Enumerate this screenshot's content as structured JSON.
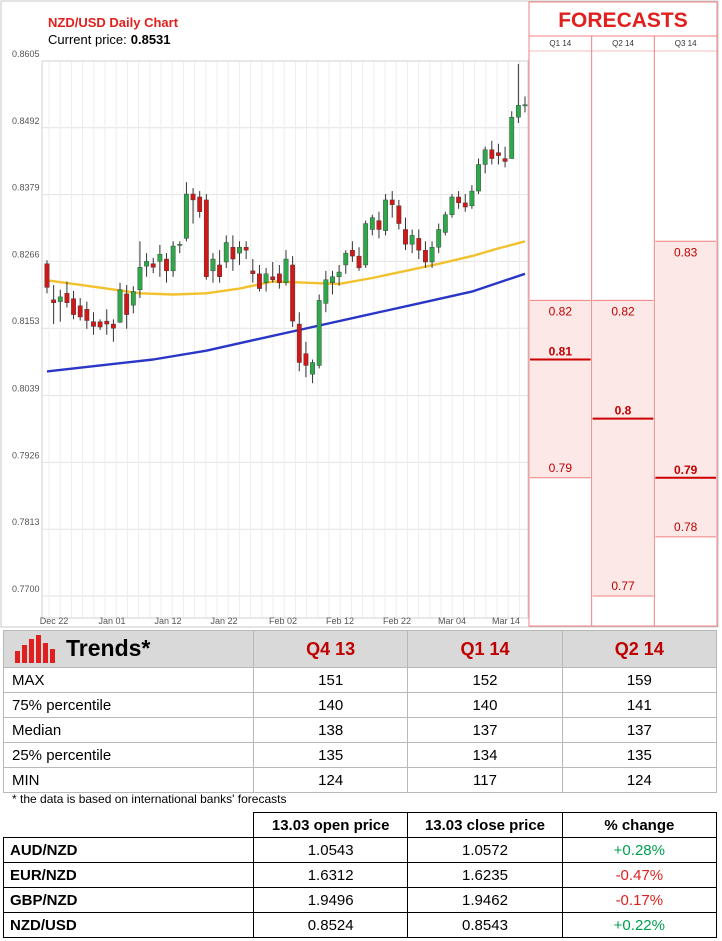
{
  "chart_data": {
    "type": "candlestick",
    "title": "NZD/USD Daily Chart",
    "current_price_label": "Current price:",
    "current_price": "0.8531",
    "y_ticks": [
      "0.8605",
      "0.8492",
      "0.8379",
      "0.8266",
      "0.8153",
      "0.8039",
      "0.7926",
      "0.7813",
      "0.7700"
    ],
    "ylim": [
      0.77,
      0.8605
    ],
    "x_ticks": [
      "Dec 22",
      "Jan 01",
      "Jan 12",
      "Jan 22",
      "Feb 02",
      "Feb 12",
      "Feb 22",
      "Mar 04",
      "Mar 14"
    ],
    "grid": true,
    "candles": [
      [
        0.8262,
        0.8268,
        0.8212,
        0.8222
      ],
      [
        0.8201,
        0.8226,
        0.816,
        0.8196
      ],
      [
        0.8198,
        0.8218,
        0.8164,
        0.8206
      ],
      [
        0.8212,
        0.8232,
        0.8188,
        0.8196
      ],
      [
        0.8203,
        0.8216,
        0.8168,
        0.8176
      ],
      [
        0.8191,
        0.8204,
        0.8166,
        0.8172
      ],
      [
        0.8185,
        0.8198,
        0.8152,
        0.8166
      ],
      [
        0.8164,
        0.818,
        0.8142,
        0.8156
      ],
      [
        0.8164,
        0.8168,
        0.815,
        0.8155
      ],
      [
        0.8165,
        0.8185,
        0.8142,
        0.816
      ],
      [
        0.816,
        0.8168,
        0.813,
        0.8153
      ],
      [
        0.8163,
        0.823,
        0.8162,
        0.8218
      ],
      [
        0.8211,
        0.8226,
        0.8152,
        0.8176
      ],
      [
        0.8192,
        0.8224,
        0.8178,
        0.8215
      ],
      [
        0.8218,
        0.83,
        0.8204,
        0.8256
      ],
      [
        0.8258,
        0.828,
        0.824,
        0.8266
      ],
      [
        0.8262,
        0.8272,
        0.8246,
        0.8256
      ],
      [
        0.8266,
        0.8294,
        0.824,
        0.8278
      ],
      [
        0.827,
        0.828,
        0.823,
        0.825
      ],
      [
        0.825,
        0.83,
        0.824,
        0.8292
      ],
      [
        0.8295,
        0.83,
        0.828,
        0.8295
      ],
      [
        0.8305,
        0.84,
        0.83,
        0.838
      ],
      [
        0.838,
        0.839,
        0.833,
        0.837
      ],
      [
        0.8375,
        0.8385,
        0.834,
        0.835
      ],
      [
        0.837,
        0.838,
        0.8235,
        0.824
      ],
      [
        0.825,
        0.828,
        0.823,
        0.827
      ],
      [
        0.826,
        0.8285,
        0.823,
        0.824
      ],
      [
        0.8265,
        0.831,
        0.8255,
        0.8298
      ],
      [
        0.829,
        0.831,
        0.825,
        0.827
      ],
      [
        0.828,
        0.83,
        0.826,
        0.829
      ],
      [
        0.829,
        0.83,
        0.827,
        0.8285
      ],
      [
        0.825,
        0.827,
        0.823,
        0.8245
      ],
      [
        0.8245,
        0.826,
        0.8215,
        0.822
      ],
      [
        0.823,
        0.8255,
        0.8215,
        0.8245
      ],
      [
        0.824,
        0.8265,
        0.823,
        0.8235
      ],
      [
        0.8245,
        0.826,
        0.822,
        0.823
      ],
      [
        0.823,
        0.8285,
        0.8225,
        0.827
      ],
      [
        0.826,
        0.8275,
        0.8155,
        0.8165
      ],
      [
        0.816,
        0.818,
        0.808,
        0.8095
      ],
      [
        0.811,
        0.813,
        0.807,
        0.809
      ],
      [
        0.8075,
        0.81,
        0.806,
        0.8095
      ],
      [
        0.809,
        0.821,
        0.8085,
        0.82
      ],
      [
        0.8195,
        0.825,
        0.818,
        0.8235
      ],
      [
        0.823,
        0.825,
        0.821,
        0.824
      ],
      [
        0.824,
        0.826,
        0.8225,
        0.8248
      ],
      [
        0.826,
        0.8285,
        0.8245,
        0.828
      ],
      [
        0.8285,
        0.83,
        0.8265,
        0.8275
      ],
      [
        0.8275,
        0.829,
        0.825,
        0.8255
      ],
      [
        0.826,
        0.8335,
        0.8255,
        0.833
      ],
      [
        0.832,
        0.8345,
        0.831,
        0.834
      ],
      [
        0.8335,
        0.835,
        0.8305,
        0.832
      ],
      [
        0.8318,
        0.838,
        0.831,
        0.837
      ],
      [
        0.837,
        0.8385,
        0.834,
        0.8362
      ],
      [
        0.836,
        0.837,
        0.832,
        0.833
      ],
      [
        0.832,
        0.834,
        0.8285,
        0.8295
      ],
      [
        0.8295,
        0.832,
        0.828,
        0.831
      ],
      [
        0.8305,
        0.832,
        0.827,
        0.8285
      ],
      [
        0.8285,
        0.83,
        0.8255,
        0.8265
      ],
      [
        0.8265,
        0.83,
        0.8255,
        0.829
      ],
      [
        0.829,
        0.833,
        0.828,
        0.832
      ],
      [
        0.8315,
        0.835,
        0.831,
        0.8345
      ],
      [
        0.8345,
        0.838,
        0.834,
        0.8375
      ],
      [
        0.8375,
        0.8385,
        0.8355,
        0.8365
      ],
      [
        0.8365,
        0.838,
        0.835,
        0.8358
      ],
      [
        0.836,
        0.8395,
        0.8355,
        0.8385
      ],
      [
        0.8385,
        0.844,
        0.838,
        0.843
      ],
      [
        0.843,
        0.846,
        0.8415,
        0.8455
      ],
      [
        0.8455,
        0.847,
        0.843,
        0.844
      ],
      [
        0.845,
        0.8465,
        0.843,
        0.8445
      ],
      [
        0.844,
        0.846,
        0.8425,
        0.8435
      ],
      [
        0.844,
        0.852,
        0.844,
        0.851
      ],
      [
        0.851,
        0.86,
        0.85,
        0.853
      ],
      [
        0.853,
        0.8545,
        0.8518,
        0.8531
      ]
    ],
    "series": [
      {
        "name": "",
        "color": "#f2c12e",
        "values": [
          [
            0,
            0.8234
          ],
          [
            4,
            0.8228
          ],
          [
            9,
            0.822
          ],
          [
            14,
            0.8212
          ],
          [
            19,
            0.821
          ],
          [
            24,
            0.8212
          ],
          [
            29,
            0.822
          ],
          [
            34,
            0.8232
          ],
          [
            39,
            0.823
          ],
          [
            44,
            0.8228
          ],
          [
            49,
            0.8238
          ],
          [
            54,
            0.825
          ],
          [
            59,
            0.8262
          ],
          [
            64,
            0.8275
          ],
          [
            68,
            0.8288
          ],
          [
            72,
            0.83
          ]
        ]
      },
      {
        "name": "",
        "color": "#2a36c8",
        "values": [
          [
            0,
            0.808
          ],
          [
            8,
            0.809
          ],
          [
            16,
            0.81
          ],
          [
            24,
            0.8115
          ],
          [
            32,
            0.8135
          ],
          [
            40,
            0.8155
          ],
          [
            48,
            0.8175
          ],
          [
            56,
            0.8195
          ],
          [
            64,
            0.8215
          ],
          [
            72,
            0.8245
          ]
        ]
      }
    ]
  },
  "forecasts": {
    "title": "FORECASTS",
    "columns": [
      {
        "label": "Q1 14",
        "low": 0.79,
        "high": 0.82,
        "mid": 0.81,
        "low_label": "0.79",
        "high_label": "0.82",
        "mid_label": "0.81"
      },
      {
        "label": "Q2 14",
        "low": 0.77,
        "high": 0.82,
        "mid": 0.8,
        "low_label": "0.77",
        "high_label": "0.82",
        "mid_label": "0.8"
      },
      {
        "label": "Q3 14",
        "low": 0.78,
        "high": 0.83,
        "mid": 0.79,
        "low_label": "0.78",
        "high_label": "0.83",
        "mid_label": "0.79"
      }
    ]
  },
  "trends": {
    "title": "Trends*",
    "columns": [
      "Q4 13",
      "Q1 14",
      "Q2 14"
    ],
    "rows": [
      {
        "label": "MAX",
        "values": [
          "151",
          "152",
          "159"
        ]
      },
      {
        "label": "75% percentile",
        "values": [
          "140",
          "140",
          "141"
        ]
      },
      {
        "label": "Median",
        "values": [
          "138",
          "137",
          "137"
        ]
      },
      {
        "label": "25% percentile",
        "values": [
          "135",
          "134",
          "135"
        ]
      },
      {
        "label": "MIN",
        "values": [
          "124",
          "117",
          "124"
        ]
      }
    ],
    "footnote": "* the data is based on international banks' forecasts"
  },
  "prices": {
    "headers": [
      "13.03 open price",
      "13.03 close price",
      "% change"
    ],
    "rows": [
      {
        "pair": "AUD/NZD",
        "open": "1.0543",
        "close": "1.0572",
        "change": "+0.28%",
        "direction": "up"
      },
      {
        "pair": "EUR/NZD",
        "open": "1.6312",
        "close": "1.6235",
        "change": "-0.47%",
        "direction": "down"
      },
      {
        "pair": "GBP/NZD",
        "open": "1.9496",
        "close": "1.9462",
        "change": "-0.17%",
        "direction": "down"
      },
      {
        "pair": "NZD/USD",
        "open": "0.8524",
        "close": "0.8543",
        "change": "+0.22%",
        "direction": "up"
      }
    ]
  },
  "colors": {
    "up": "#2ea84a",
    "down": "#d01818",
    "forecast_fill": "#fde8e8",
    "forecast_border": "#f08080",
    "accent": "#e0201e"
  }
}
